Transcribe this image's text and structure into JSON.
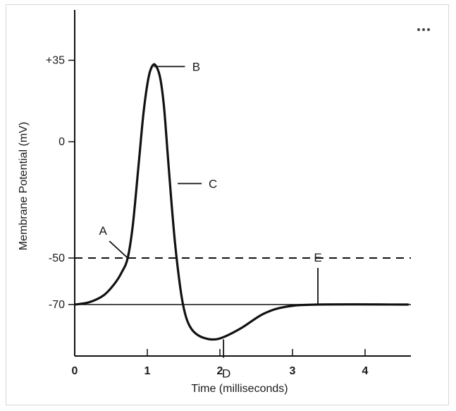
{
  "toolbar": {
    "more_icon": "more-horizontal-icon"
  },
  "chart_data": {
    "type": "line",
    "title": "",
    "xlabel": "Time (milliseconds)",
    "ylabel": "Membrane Potential (mV)",
    "xlim": [
      0,
      4.6
    ],
    "ylim": [
      -130,
      50
    ],
    "grid": false,
    "x_ticks": [
      0,
      1,
      2,
      3,
      4
    ],
    "x_tick_labels": [
      "0",
      "1",
      "2",
      "3",
      "4"
    ],
    "y_ticks": [
      35,
      0,
      -50,
      -70
    ],
    "y_tick_labels": [
      "+35",
      "0",
      "-50",
      "-70"
    ],
    "reference_lines": [
      {
        "y": -50,
        "style": "dashed"
      },
      {
        "y": -70,
        "style": "solid"
      }
    ],
    "series": [
      {
        "x": [
          0,
          0.2,
          0.4,
          0.55,
          0.65,
          0.73,
          0.8,
          0.88,
          0.95,
          1.02,
          1.08,
          1.13,
          1.18,
          1.23,
          1.28,
          1.33,
          1.38,
          1.43,
          1.48,
          1.53,
          1.58,
          1.65,
          1.75,
          1.9,
          2.05,
          2.3,
          2.6,
          2.9,
          3.35,
          4.6
        ],
        "values": [
          -70,
          -69,
          -66,
          -61,
          -56,
          -50,
          -36,
          -10,
          13,
          28,
          33,
          32,
          27,
          15,
          -5,
          -25,
          -43,
          -57,
          -68,
          -75,
          -79,
          -82,
          -84,
          -85,
          -84,
          -80,
          -74,
          -71,
          -70,
          -70
        ]
      }
    ],
    "annotations": [
      {
        "label": "A",
        "x": 0.73,
        "y": -50
      },
      {
        "label": "B",
        "x": 1.13,
        "y": 32
      },
      {
        "label": "C",
        "x": 1.38,
        "y": -18
      },
      {
        "label": "D",
        "x": 2.05,
        "y": -85
      },
      {
        "label": "E",
        "x": 3.35,
        "y": -70
      }
    ]
  }
}
